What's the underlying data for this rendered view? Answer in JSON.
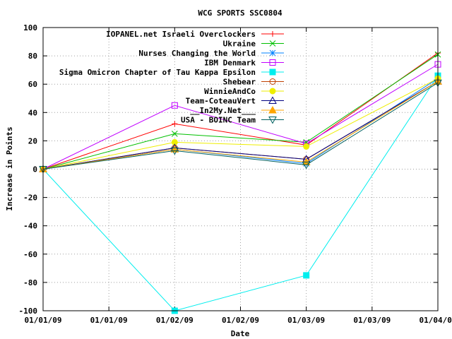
{
  "chart_data": {
    "type": "line",
    "title": "WCG SPORTS SSC0804",
    "xlabel": "Date",
    "ylabel": "Increase in Points",
    "ylim": [
      -100,
      100
    ],
    "yticks": [
      -100,
      -80,
      -60,
      -40,
      -20,
      0,
      20,
      40,
      60,
      80,
      100
    ],
    "xticks": [
      "01/01/09",
      "01/01/09",
      "01/02/09",
      "01/02/09",
      "01/03/09",
      "01/03/09",
      "01/04/09"
    ],
    "x": [
      "01/01/09",
      "01/02/09",
      "01/03/09",
      "01/04/09"
    ],
    "grid": true,
    "legend_position": "top-right",
    "series": [
      {
        "name": "IOPANEL.net  Israeli Overclockers",
        "color": "#ff0000",
        "marker": "plus",
        "values": [
          0,
          32,
          17,
          82
        ]
      },
      {
        "name": "Ukraine",
        "color": "#00c000",
        "marker": "cross",
        "values": [
          0,
          25,
          19,
          81
        ]
      },
      {
        "name": "Nurses Changing the World",
        "color": "#0080ff",
        "marker": "star",
        "values": [
          0,
          14,
          4,
          64
        ]
      },
      {
        "name": "IBM Denmark",
        "color": "#c000ff",
        "marker": "box",
        "values": [
          0,
          45,
          18,
          74
        ]
      },
      {
        "name": "Sigma Omicron Chapter of Tau Kappa Epsilon",
        "color": "#00eeee",
        "marker": "filled-box",
        "values": [
          0,
          -100,
          -75,
          66
        ]
      },
      {
        "name": "Shebear",
        "color": "#c04000",
        "marker": "circle",
        "values": [
          0,
          15,
          7,
          62
        ]
      },
      {
        "name": "WinnieAndCo",
        "color": "#eeee00",
        "marker": "filled-circle",
        "values": [
          0,
          19,
          16,
          64
        ]
      },
      {
        "name": "Team-CoteauVert",
        "color": "#000080",
        "marker": "triangle",
        "values": [
          0,
          15,
          7,
          62
        ]
      },
      {
        "name": "__In2My.Net___",
        "color": "#ffa500",
        "marker": "filled-triangle",
        "values": [
          0,
          14,
          5,
          62
        ]
      },
      {
        "name": "USA - BOINC Team",
        "color": "#006060",
        "marker": "down-triangle",
        "values": [
          0,
          13,
          3,
          61
        ]
      }
    ]
  }
}
